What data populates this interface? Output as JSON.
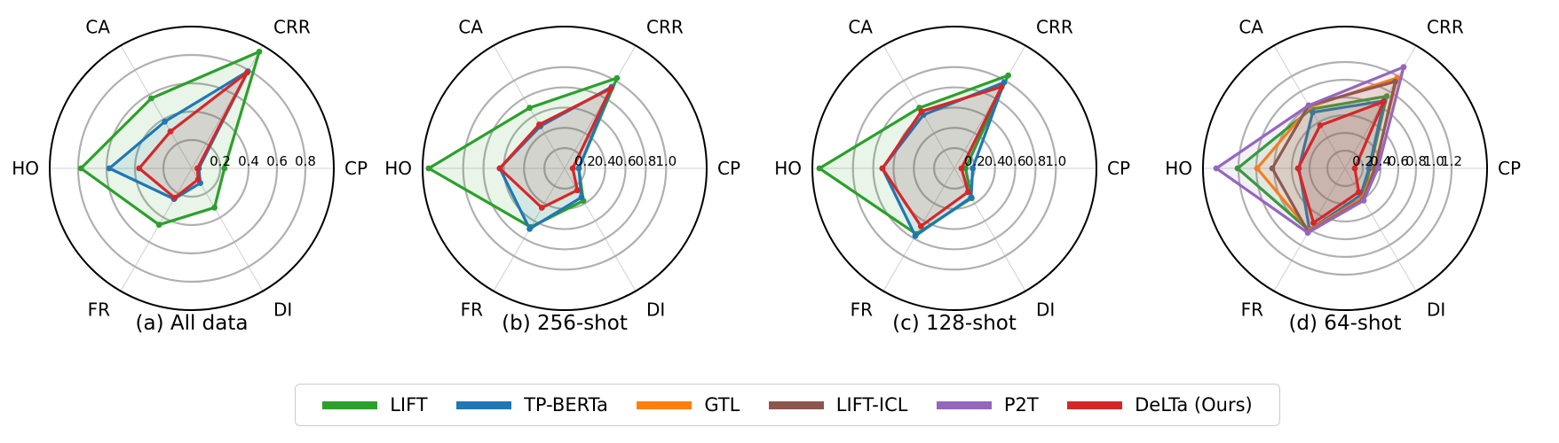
{
  "legend": {
    "items": [
      {
        "label": "LIFT",
        "color": "#2ca02c"
      },
      {
        "label": "TP-BERTa",
        "color": "#1f77b4"
      },
      {
        "label": "GTL",
        "color": "#ff7f0e"
      },
      {
        "label": "LIFT-ICL",
        "color": "#8c564b"
      },
      {
        "label": "P2T",
        "color": "#9467bd"
      },
      {
        "label": "DeLTa (Ours)",
        "color": "#d62728"
      }
    ]
  },
  "chart_data": [
    {
      "type": "radar",
      "caption": "(a) All data",
      "categories": [
        "CP",
        "CRR",
        "CA",
        "HO",
        "FR",
        "DI"
      ],
      "rmax": 1.0,
      "rticks": [
        0.2,
        0.4,
        0.6,
        0.8
      ],
      "rtick_labels": [
        "0.2",
        "0.4",
        "0.6",
        "0.8"
      ],
      "series": [
        {
          "name": "LIFT",
          "values": [
            0.23,
            0.95,
            0.57,
            0.78,
            0.46,
            0.32
          ]
        },
        {
          "name": "TP-BERTa",
          "values": [
            0.05,
            0.79,
            0.38,
            0.58,
            0.25,
            0.12
          ]
        },
        {
          "name": "DeLTa (Ours)",
          "values": [
            0.04,
            0.78,
            0.3,
            0.37,
            0.24,
            0.09
          ]
        }
      ]
    },
    {
      "type": "radar",
      "caption": "(b) 256-shot",
      "categories": [
        "CP",
        "CRR",
        "CA",
        "HO",
        "FR",
        "DI"
      ],
      "rmax": 1.4,
      "rticks": [
        0.2,
        0.4,
        0.6,
        0.8,
        1.0
      ],
      "rtick_labels": [
        "0.2",
        "0.4",
        "0.6",
        "0.8",
        "1.0"
      ],
      "series": [
        {
          "name": "LIFT",
          "values": [
            0.14,
            1.03,
            0.69,
            1.34,
            0.67,
            0.37
          ]
        },
        {
          "name": "TP-BERTa",
          "values": [
            0.14,
            0.93,
            0.48,
            0.64,
            0.69,
            0.33
          ]
        },
        {
          "name": "DeLTa (Ours)",
          "values": [
            0.08,
            0.91,
            0.5,
            0.64,
            0.45,
            0.25
          ]
        }
      ]
    },
    {
      "type": "radar",
      "caption": "(c) 128-shot",
      "categories": [
        "CP",
        "CRR",
        "CA",
        "HO",
        "FR",
        "DI"
      ],
      "rmax": 1.4,
      "rticks": [
        0.2,
        0.4,
        0.6,
        0.8,
        1.0
      ],
      "rtick_labels": [
        "0.2",
        "0.4",
        "0.6",
        "0.8",
        "1.0"
      ],
      "series": [
        {
          "name": "LIFT",
          "values": [
            0.11,
            1.06,
            0.69,
            1.33,
            0.75,
            0.34
          ]
        },
        {
          "name": "TP-BERTa",
          "values": [
            0.18,
            0.98,
            0.61,
            0.71,
            0.77,
            0.33
          ]
        },
        {
          "name": "DeLTa (Ours)",
          "values": [
            0.07,
            0.93,
            0.65,
            0.71,
            0.66,
            0.27
          ]
        }
      ]
    },
    {
      "type": "radar",
      "caption": "(d) 64-shot",
      "categories": [
        "CP",
        "CRR",
        "CA",
        "HO",
        "FR",
        "DI"
      ],
      "rmax": 1.6,
      "rticks": [
        0.2,
        0.4,
        0.6,
        0.8,
        1.0,
        1.2
      ],
      "rtick_labels": [
        "0.2",
        "0.4",
        "0.6",
        "0.8",
        "1.0",
        "1.2"
      ],
      "series": [
        {
          "name": "LIFT",
          "values": [
            0.28,
            0.94,
            0.77,
            1.21,
            0.81,
            0.39
          ]
        },
        {
          "name": "TP-BERTa",
          "values": [
            0.27,
            0.88,
            0.73,
            0.52,
            0.8,
            0.35
          ]
        },
        {
          "name": "GTL",
          "values": [
            0.33,
            1.18,
            0.8,
            0.99,
            0.81,
            0.39
          ]
        },
        {
          "name": "LIFT-ICL",
          "values": [
            0.34,
            1.13,
            0.82,
            0.82,
            0.83,
            0.41
          ]
        },
        {
          "name": "P2T",
          "values": [
            0.37,
            1.32,
            0.82,
            1.45,
            0.84,
            0.42
          ]
        },
        {
          "name": "DeLTa (Ours)",
          "values": [
            0.11,
            0.87,
            0.56,
            0.53,
            0.71,
            0.31
          ]
        }
      ]
    }
  ]
}
